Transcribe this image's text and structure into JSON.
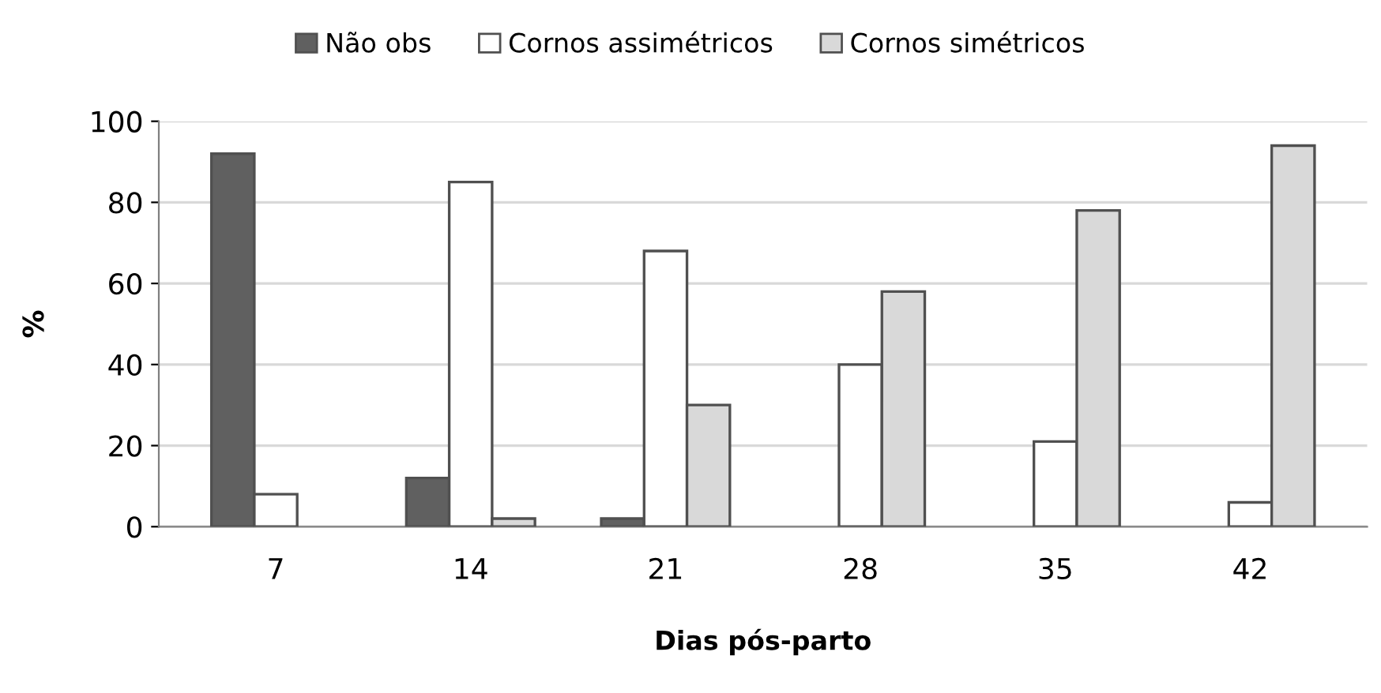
{
  "chart_data": {
    "type": "bar",
    "xlabel": "Dias pós-parto",
    "ylabel": "%",
    "categories": [
      "7",
      "14",
      "21",
      "28",
      "35",
      "42"
    ],
    "series": [
      {
        "name": "Não obs",
        "color": "#606060",
        "values": [
          92,
          12,
          2,
          0,
          0,
          0
        ]
      },
      {
        "name": "Cornos assimétricos",
        "color": "#ffffff",
        "values": [
          8,
          85,
          68,
          40,
          21,
          6
        ]
      },
      {
        "name": "Cornos simétricos",
        "color": "#d9d9d9",
        "values": [
          0,
          2,
          30,
          58,
          78,
          94
        ]
      }
    ],
    "ylim": [
      0,
      100
    ],
    "yticks": [
      0,
      20,
      40,
      60,
      80,
      100
    ],
    "grid": "y",
    "legend": "top"
  }
}
